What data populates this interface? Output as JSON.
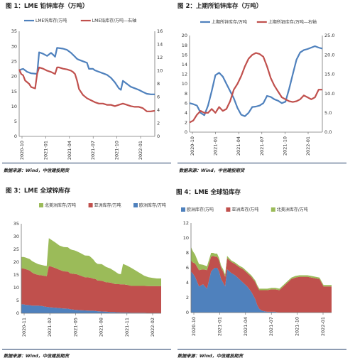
{
  "panels": [
    {
      "title": "图 1：LME 铅锌库存（万吨）",
      "source": "数据来源：Wind，中信建投期货"
    },
    {
      "title": "图 2：上期所铅锌库存（万吨）",
      "source": "数据来源：Wind，中信建投期货"
    },
    {
      "title": "图 3：LME 全球锌库存",
      "source": "数据来源：Wind，中信建投期货"
    },
    {
      "title": "图 4：LME 全球铅库存",
      "source": "数据来源：Wind，中信建投期货"
    }
  ],
  "chart_data": [
    {
      "type": "line",
      "x_ticks": [
        "2020-10",
        "2021-01",
        "2021-04",
        "2021-07",
        "2021-10",
        "2022-01"
      ],
      "y_left": {
        "range": [
          0,
          35
        ],
        "ticks": [
          0,
          5,
          10,
          15,
          20,
          25,
          30,
          35
        ]
      },
      "y_right": {
        "range": [
          0,
          16
        ],
        "ticks": [
          0,
          2,
          4,
          6,
          8,
          10,
          12,
          14,
          16
        ]
      },
      "series": [
        {
          "name": "LME锌库存/万吨",
          "axis": "left",
          "color": "#4f81bd",
          "x": [
            0,
            1,
            2,
            4,
            6,
            9,
            10,
            12,
            14,
            16,
            17,
            18,
            19,
            22,
            24,
            26,
            28,
            29,
            30,
            32,
            34,
            35,
            37,
            38,
            40,
            42,
            44,
            46,
            48,
            50,
            51,
            52,
            54,
            56,
            58,
            60,
            62,
            64,
            66,
            68
          ],
          "values": [
            22,
            22.3,
            22.5,
            21.5,
            21,
            20.8,
            28,
            27.5,
            26.8,
            27.8,
            27.2,
            26.5,
            29.5,
            29.2,
            28.8,
            27.8,
            26.5,
            25.8,
            25.5,
            25,
            24.5,
            22.5,
            22.5,
            22,
            21.5,
            21,
            20.5,
            19.5,
            18,
            16,
            15.5,
            18.5,
            17.5,
            16.5,
            16,
            15.5,
            14.8,
            14.2,
            14,
            14
          ]
        },
        {
          "name": "LME铅库存/万吨—右轴",
          "axis": "right",
          "color": "#c0504d",
          "x": [
            0,
            1,
            2,
            3,
            5,
            6,
            8,
            9,
            10,
            12,
            14,
            16,
            18,
            19,
            20,
            22,
            24,
            26,
            27,
            28,
            29,
            30,
            32,
            34,
            36,
            38,
            40,
            42,
            44,
            46,
            48,
            50,
            52,
            54,
            56,
            58,
            60,
            62,
            64,
            66,
            68
          ],
          "values": [
            10.2,
            9.5,
            9.3,
            8.5,
            8,
            7.5,
            7.3,
            9.5,
            10.5,
            10.3,
            10,
            9.8,
            9.5,
            10.5,
            10.5,
            10.3,
            10.2,
            10,
            9.8,
            9.5,
            8.5,
            7.2,
            6.3,
            5.8,
            5.5,
            5.2,
            5,
            5,
            4.8,
            4.8,
            4.6,
            4.8,
            5,
            4.8,
            4.6,
            4.5,
            4.5,
            4.3,
            3.8,
            3.8,
            3.9
          ]
        }
      ]
    },
    {
      "type": "line",
      "x_ticks": [
        "2020-10",
        "2021-01",
        "2021-04",
        "2021-07",
        "2021-10",
        "2022-01"
      ],
      "y_left": {
        "range": [
          0,
          20
        ],
        "ticks": [
          0,
          2,
          4,
          6,
          8,
          10,
          12,
          14,
          16,
          18,
          20
        ]
      },
      "y_right": {
        "range": [
          0,
          25
        ],
        "ticks": [
          "0.0",
          "5.0",
          "10.0",
          "15.0",
          "20.0",
          "25.0"
        ]
      },
      "series": [
        {
          "name": "上期所锌库存/万吨",
          "axis": "left",
          "color": "#4f81bd",
          "x": [
            0,
            2,
            4,
            6,
            8,
            10,
            12,
            14,
            16,
            18,
            20,
            22,
            24,
            26,
            28,
            30,
            32,
            34,
            36,
            38,
            40,
            42,
            44,
            46,
            48,
            50,
            52,
            54,
            56,
            58,
            60,
            62,
            64,
            66,
            68,
            70,
            72
          ],
          "values": [
            6,
            5.8,
            5.5,
            4,
            3.5,
            5.5,
            8.5,
            11.8,
            12.3,
            11.5,
            10,
            8.5,
            7,
            5,
            3.6,
            3.3,
            4,
            5.2,
            5.3,
            5.5,
            6,
            7.5,
            7.3,
            6.8,
            6.5,
            6,
            6.3,
            9,
            12,
            15,
            16.5,
            17,
            17.2,
            17.5,
            17.8,
            17.5,
            17.3
          ]
        },
        {
          "name": "上期所铅库存/万吨—右轴",
          "axis": "right",
          "color": "#c0504d",
          "x": [
            0,
            2,
            4,
            6,
            8,
            10,
            12,
            14,
            16,
            18,
            20,
            22,
            24,
            26,
            28,
            30,
            32,
            34,
            36,
            38,
            40,
            42,
            44,
            46,
            48,
            50,
            52,
            54,
            56,
            58,
            60,
            62,
            64,
            66,
            68,
            70,
            72
          ],
          "values": [
            2.5,
            3,
            4.5,
            5.5,
            5,
            5,
            6,
            5,
            6.5,
            5.5,
            6,
            8,
            11,
            12.5,
            14.5,
            17,
            19,
            20,
            20.5,
            20.2,
            19.5,
            17,
            14,
            12,
            10.5,
            9,
            8.5,
            8,
            7.8,
            8,
            8.5,
            9.5,
            9,
            8.5,
            9,
            11,
            11
          ]
        }
      ]
    },
    {
      "type": "area",
      "stacked": true,
      "x_ticks": [
        "2020-11",
        "2021-02",
        "2021-05",
        "2021-08",
        "2021-11",
        "2022-02"
      ],
      "y": {
        "range": [
          0,
          35
        ],
        "ticks": [
          0,
          5,
          10,
          15,
          20,
          25,
          30,
          35
        ]
      },
      "x": [
        0,
        1,
        2,
        4,
        5,
        6,
        8,
        10,
        11,
        12,
        13,
        14,
        16,
        18,
        20,
        22,
        23,
        24,
        25,
        26,
        28,
        30,
        32,
        33,
        34,
        35,
        36,
        38,
        40,
        42,
        44,
        45,
        46,
        47,
        48,
        50,
        52,
        54,
        56,
        58,
        60,
        62,
        64,
        66
      ],
      "series": [
        {
          "name": "欧洲库存/万吨",
          "color": "#4f81bd",
          "values": [
            3.5,
            3.5,
            3.3,
            3.2,
            3,
            3,
            3,
            2.8,
            2.6,
            2.5,
            2.4,
            2.3,
            2.2,
            2,
            1.9,
            1.8,
            1.6,
            1.5,
            1.4,
            1.3,
            1.2,
            1.1,
            1,
            1,
            1,
            0.9,
            0.8,
            0.7,
            0.6,
            0.5,
            0.5,
            0.4,
            0.4,
            0.3,
            0.3,
            0.3,
            0.2,
            0.2,
            0.2,
            0.2,
            0.1,
            0.1,
            0.1,
            0.1
          ]
        },
        {
          "name": "亚洲库存/万吨",
          "color": "#c0504d",
          "values": [
            14,
            14,
            14,
            13.5,
            13,
            12.5,
            12,
            12,
            12,
            12,
            16,
            16,
            15.5,
            15,
            14.5,
            14.5,
            14,
            14,
            14,
            14,
            13.5,
            13,
            13,
            12.8,
            12.5,
            12.5,
            12,
            12,
            11.5,
            11.5,
            11,
            11,
            11,
            11,
            11,
            10.8,
            10.5,
            10.5,
            10.5,
            10.5,
            10.5,
            10.5,
            10.5,
            10.5
          ]
        },
        {
          "name": "北美洲库存/万吨",
          "color": "#9bbb59",
          "values": [
            4.5,
            4.5,
            4.5,
            4.5,
            4.5,
            4.5,
            4.2,
            4,
            4,
            4,
            11,
            10.5,
            10,
            9.5,
            9.5,
            9.5,
            9.5,
            9.3,
            9.2,
            9,
            8.8,
            8.5,
            8.5,
            8,
            7.5,
            6.5,
            6.5,
            6.5,
            6,
            5.5,
            5,
            4.5,
            4,
            4,
            8,
            7.5,
            7,
            6,
            5,
            4,
            3.5,
            3.2,
            3,
            3
          ]
        }
      ]
    },
    {
      "type": "area",
      "stacked": true,
      "x_ticks": [
        "2020-10",
        "2021-01",
        "2021-04",
        "2021-07",
        "2021-10",
        "2022-01"
      ],
      "y": {
        "range": [
          0,
          12
        ],
        "ticks": [
          0,
          2,
          4,
          6,
          8,
          10,
          12
        ]
      },
      "x": [
        0,
        1,
        2,
        4,
        6,
        8,
        10,
        11,
        12,
        13,
        14,
        15,
        16,
        17,
        18,
        20,
        22,
        24,
        26,
        28,
        30,
        32,
        33,
        34,
        35,
        36,
        38,
        40,
        42,
        44,
        46,
        48,
        50,
        52,
        54,
        56,
        58,
        60,
        62,
        64,
        66,
        68,
        70
      ],
      "series": [
        {
          "name": "欧洲库存/万吨",
          "color": "#4f81bd",
          "values": [
            5.5,
            5.2,
            4.8,
            3.5,
            3.8,
            3.2,
            5.5,
            5.8,
            6,
            6,
            5.5,
            4.5,
            4,
            3.5,
            5.8,
            5.3,
            5,
            4.5,
            4,
            3.5,
            2.8,
            1.8,
            1,
            0.5,
            0.3,
            0.2,
            0.1,
            0.1,
            0.1,
            0,
            0,
            0,
            0,
            0,
            0,
            0,
            0,
            0,
            0,
            0,
            0,
            0,
            0
          ]
        },
        {
          "name": "亚洲库存/万吨",
          "color": "#c0504d",
          "values": [
            1.5,
            1.5,
            1.8,
            2.2,
            2,
            2.5,
            2,
            1.8,
            1.5,
            1.5,
            1.5,
            1.5,
            1.5,
            1.3,
            1.5,
            1.5,
            1.5,
            1.6,
            1.8,
            1.8,
            2,
            2.3,
            2.5,
            2.5,
            2.7,
            2.8,
            2.9,
            3,
            3,
            3,
            3.5,
            4,
            4.5,
            4.7,
            4.8,
            4.8,
            4.8,
            4.7,
            4.6,
            4.5,
            3.5,
            3.5,
            3.5
          ]
        },
        {
          "name": "北美洲库存/万吨",
          "color": "#9bbb59",
          "values": [
            1.8,
            1.5,
            1.2,
            0.8,
            0.6,
            0.5,
            0.5,
            0.4,
            0.4,
            0.4,
            0.3,
            0.3,
            0.3,
            0.3,
            0.3,
            0.2,
            0.2,
            0.2,
            0.2,
            0.2,
            0.2,
            0.2,
            0.2,
            0.2,
            0.2,
            0.2,
            0.2,
            0.2,
            0.2,
            0.2,
            0.2,
            0.2,
            0.2,
            0.2,
            0.2,
            0.2,
            0.2,
            0.2,
            0.2,
            0.2,
            0.2,
            0.2,
            0.2
          ]
        }
      ]
    }
  ]
}
